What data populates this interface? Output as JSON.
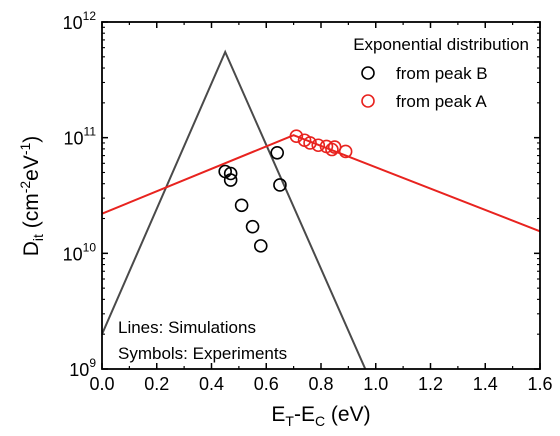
{
  "chart_data": {
    "type": "scatter",
    "title": "",
    "x_axis": {
      "label_main": "E",
      "label_sub1": "T",
      "label_mid": "-E",
      "label_sub2": "C",
      "label_tail": " (eV)",
      "range": [
        0.0,
        1.6
      ],
      "ticks": [
        0.0,
        0.2,
        0.4,
        0.6,
        0.8,
        1.0,
        1.2,
        1.4,
        1.6
      ],
      "tick_labels": [
        "0.0",
        "0.2",
        "0.4",
        "0.6",
        "0.8",
        "1.0",
        "1.2",
        "1.4",
        "1.6"
      ]
    },
    "y_axis": {
      "label_main": "D",
      "label_sub": "it",
      "label_paren": " (cm",
      "label_exp1": "-2",
      "label_ev": "eV",
      "label_exp2": "-1",
      "label_close": ")",
      "scale": "log",
      "range": [
        1000000000.0,
        1000000000000.0
      ],
      "ticks": [
        1000000000.0,
        10000000000.0,
        100000000000.0,
        1000000000000.0
      ],
      "tick_base": [
        "10",
        "10",
        "10",
        "10"
      ],
      "tick_exp": [
        "9",
        "10",
        "11",
        "12"
      ]
    },
    "legend": {
      "title": "Exponential distribution",
      "position": "top-right",
      "entries": [
        {
          "label": "from peak B",
          "color": "#000000"
        },
        {
          "label": "from peak A",
          "color": "#e8231f"
        }
      ]
    },
    "annotations": {
      "line1": "Lines: Simulations",
      "line2": "Symbols: Experiments"
    },
    "series": [
      {
        "name": "from peak B",
        "kind": "markers",
        "color": "#000000",
        "points": [
          [
            0.45,
            51000000000.0
          ],
          [
            0.47,
            49000000000.0
          ],
          [
            0.47,
            43000000000.0
          ],
          [
            0.51,
            26000000000.0
          ],
          [
            0.55,
            17000000000.0
          ],
          [
            0.58,
            11600000000.0
          ],
          [
            0.64,
            74000000000.0
          ],
          [
            0.65,
            39000000000.0
          ]
        ]
      },
      {
        "name": "from peak A",
        "kind": "markers",
        "color": "#e8231f",
        "points": [
          [
            0.71,
            103000000000.0
          ],
          [
            0.74,
            95000000000.0
          ],
          [
            0.76,
            90000000000.0
          ],
          [
            0.79,
            86000000000.0
          ],
          [
            0.82,
            84000000000.0
          ],
          [
            0.84,
            79000000000.0
          ],
          [
            0.85,
            83000000000.0
          ],
          [
            0.89,
            76000000000.0
          ]
        ]
      },
      {
        "name": "",
        "kind": "line",
        "color": "#4a4a4a",
        "points": [
          [
            0.0,
            2000000000.0
          ],
          [
            0.45,
            550000000000.0
          ],
          [
            0.962,
            1000000000.0
          ]
        ]
      },
      {
        "name": "",
        "kind": "line",
        "color": "#e8231f",
        "points": [
          [
            0.0,
            22000000000.0
          ],
          [
            0.7,
            105000000000.0
          ],
          [
            1.6,
            15500000000.0
          ]
        ]
      }
    ]
  }
}
